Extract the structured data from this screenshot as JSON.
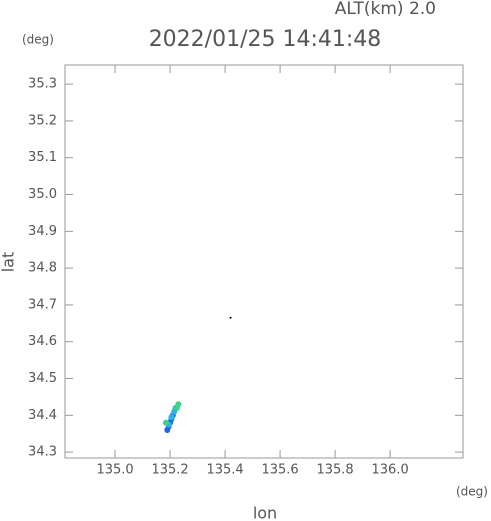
{
  "chart_data": {
    "type": "scatter",
    "title": "2022/01/25 14:41:48",
    "subtitle": "ALT(km) 2.0",
    "x_label": "lon",
    "y_label": "lat",
    "x_unit": "(deg)",
    "y_unit": "(deg)",
    "xlim": [
      134.818,
      136.265
    ],
    "ylim": [
      34.284,
      35.352
    ],
    "xticks": [
      {
        "value": 135.0,
        "label": "135.0"
      },
      135.2,
      135.4,
      135.6,
      135.8,
      {
        "value": 136.0,
        "label": "136.0"
      }
    ],
    "yticks": [
      34.3,
      34.4,
      34.5,
      34.6,
      34.7,
      34.8,
      34.9,
      {
        "value": 35.0,
        "label": "35.0"
      },
      35.1,
      35.2,
      35.3
    ],
    "series": [
      {
        "color": "#1e64e6",
        "x": [
          135.19,
          135.195,
          135.2,
          135.205,
          135.21
        ],
        "y": [
          34.36,
          34.37,
          34.38,
          34.39,
          34.4
        ]
      },
      {
        "color": "#28b4e6",
        "x": [
          135.195,
          135.205,
          135.215,
          135.22
        ],
        "y": [
          34.375,
          34.395,
          34.41,
          34.42
        ]
      },
      {
        "color": "#3cd28c",
        "x": [
          135.185,
          135.225,
          135.23
        ],
        "y": [
          34.38,
          34.42,
          34.43
        ]
      },
      {
        "color": "#000000",
        "x": [
          135.42
        ],
        "y": [
          34.665
        ]
      }
    ]
  }
}
